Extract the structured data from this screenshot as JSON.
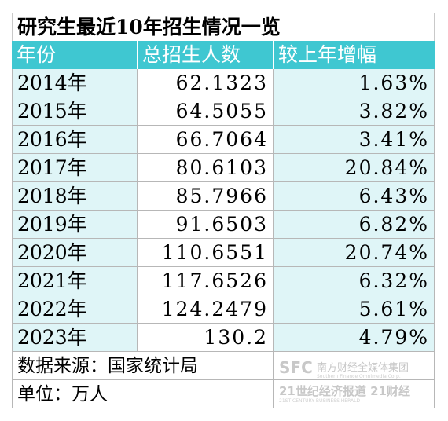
{
  "title": "研究生最近10年招生情况一览",
  "headers": [
    "年份",
    "总招生人数",
    "较上年增幅"
  ],
  "rows": [
    {
      "year": "2014年",
      "total": "62.1323",
      "growth": "1.63%"
    },
    {
      "year": "2015年",
      "total": "64.5055",
      "growth": "3.82%"
    },
    {
      "year": "2016年",
      "total": "66.7064",
      "growth": "3.41%"
    },
    {
      "year": "2017年",
      "total": "80.6103",
      "growth": "20.84%"
    },
    {
      "year": "2018年",
      "total": "85.7966",
      "growth": "6.43%"
    },
    {
      "year": "2019年",
      "total": "91.6503",
      "growth": "6.82%"
    },
    {
      "year": "2020年",
      "total": "110.6551",
      "growth": "20.74%"
    },
    {
      "year": "2021年",
      "total": "117.6526",
      "growth": "6.32%"
    },
    {
      "year": "2022年",
      "total": "124.2479",
      "growth": "5.61%"
    },
    {
      "year": "2023年",
      "total": "130.2",
      "growth": "4.79%"
    }
  ],
  "source": "数据来源：国家统计局",
  "unit": "单位：万人",
  "watermark": {
    "line1": "SFC 南方财经全媒体集团",
    "line1_sub": "Southern Finance Omnimedia Corp.",
    "line2": "21世纪经济报道 21财经",
    "line2_sub": "21ST CENTURY BUSINESS HERALD"
  },
  "colors": {
    "header_bg": "#3fc7d1",
    "band_bg": "#dff5f7",
    "border": "#b7b7b7"
  }
}
